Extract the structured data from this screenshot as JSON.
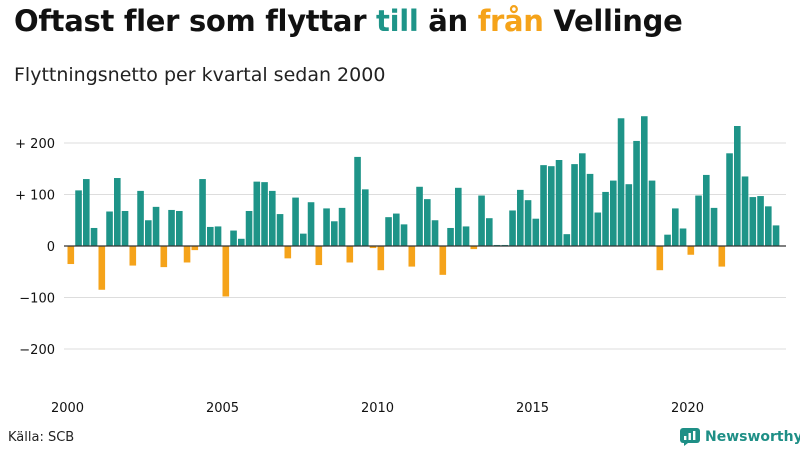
{
  "title": {
    "part1": "Oftast fler som flyttar ",
    "till": "till",
    "part2": " än ",
    "fran": "från",
    "part3": " Vellinge"
  },
  "subtitle": "Flyttningsnetto per kvartal sedan 2000",
  "source": "Källa: SCB",
  "brand": "Newsworthy",
  "colors": {
    "positive": "#1e9488",
    "negative": "#f5a31a",
    "grid": "#dddddd",
    "zero_line": "#333333",
    "text": "#111111"
  },
  "chart_data": {
    "type": "bar",
    "title": "Oftast fler som flyttar till än från Vellinge",
    "subtitle": "Flyttningsnetto per kvartal sedan 2000",
    "ylim": [
      -260,
      260
    ],
    "yticks": [
      {
        "value": 200,
        "label": "+ 200"
      },
      {
        "value": 100,
        "label": "+ 100"
      },
      {
        "value": 0,
        "label": "0"
      },
      {
        "value": -100,
        "label": "−100"
      },
      {
        "value": -200,
        "label": "−200"
      }
    ],
    "xticks": [
      {
        "year": 2000,
        "label": "2000"
      },
      {
        "year": 2005,
        "label": "2005"
      },
      {
        "year": 2010,
        "label": "2010"
      },
      {
        "year": 2015,
        "label": "2015"
      },
      {
        "year": 2020,
        "label": "2020"
      }
    ],
    "start": "2000 Q1",
    "grid": true,
    "values": [
      -35,
      108,
      130,
      35,
      -85,
      67,
      132,
      68,
      -38,
      107,
      50,
      76,
      -41,
      70,
      68,
      -32,
      -8,
      130,
      37,
      38,
      -98,
      30,
      14,
      68,
      125,
      124,
      107,
      62,
      -24,
      94,
      24,
      85,
      -37,
      73,
      48,
      74,
      -32,
      173,
      110,
      -4,
      -47,
      56,
      63,
      42,
      -40,
      115,
      91,
      50,
      -56,
      35,
      113,
      38,
      -6,
      98,
      54,
      2,
      2,
      69,
      109,
      89,
      53,
      157,
      155,
      167,
      23,
      159,
      180,
      140,
      65,
      105,
      127,
      248,
      120,
      204,
      252,
      127,
      -47,
      22,
      73,
      34,
      -17,
      98,
      138,
      74,
      -40,
      180,
      233,
      135,
      95,
      97,
      77,
      40
    ]
  }
}
